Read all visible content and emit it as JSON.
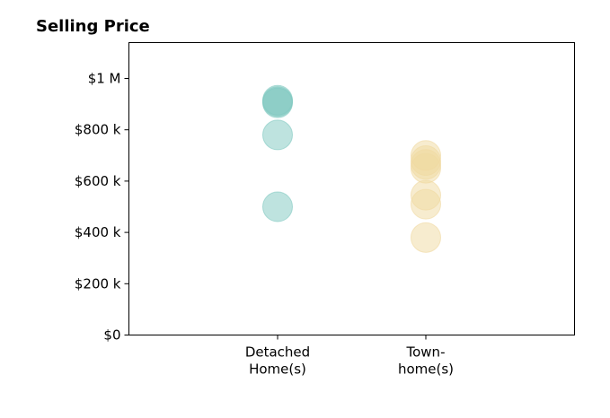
{
  "chart_data": {
    "type": "scatter",
    "title": "Selling Price",
    "xlabel": "",
    "ylabel": "",
    "categories": [
      "Detached\nHome(s)",
      "Town-\nhome(s)"
    ],
    "ylim": [
      0,
      1000000
    ],
    "yticks": [
      {
        "value": 0,
        "label": "$0"
      },
      {
        "value": 200000,
        "label": "$200 k"
      },
      {
        "value": 400000,
        "label": "$400 k"
      },
      {
        "value": 600000,
        "label": "$600 k"
      },
      {
        "value": 800000,
        "label": "$800 k"
      },
      {
        "value": 1000000,
        "label": "$1 M"
      }
    ],
    "grid": false,
    "legend": "none",
    "series": [
      {
        "category_index": 0,
        "color": "#7ec8c0",
        "values": [
          500000,
          780000,
          905000,
          910000,
          915000
        ]
      },
      {
        "category_index": 1,
        "color": "#f0d9a0",
        "values": [
          380000,
          510000,
          545000,
          650000,
          665000,
          680000,
          700000
        ]
      }
    ]
  }
}
